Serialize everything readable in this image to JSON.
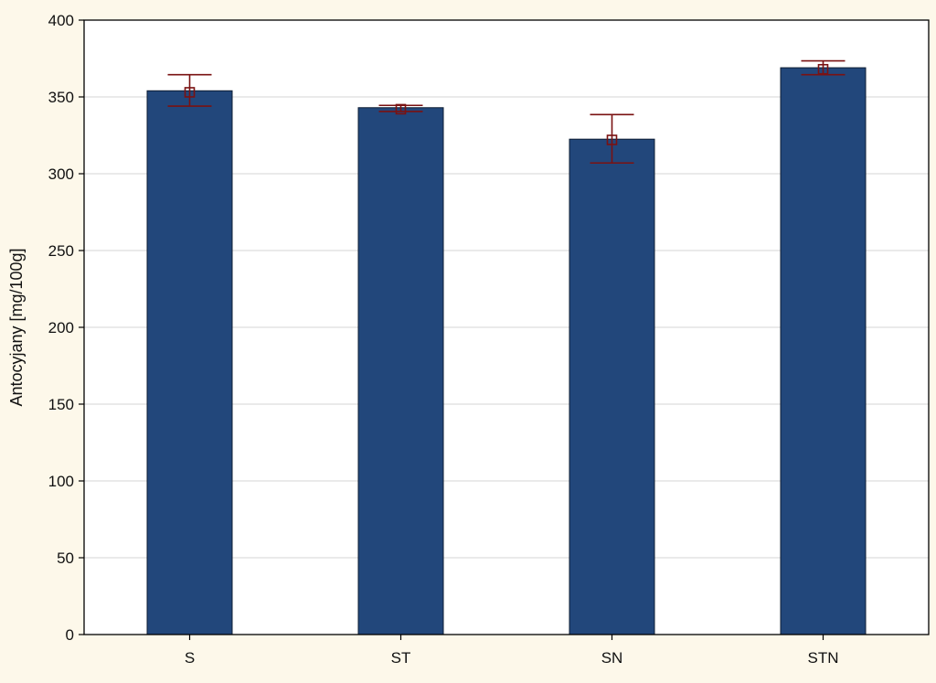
{
  "colors": {
    "background": "#fdf8ea",
    "plot_background": "#ffffff",
    "bar_fill": "#22477b",
    "bar_stroke": "#0e1d33",
    "error_bar": "#7a1212",
    "grid": "#d4d4d4",
    "axis": "#000000"
  },
  "chart_data": {
    "type": "bar",
    "categories": [
      "S",
      "ST",
      "SN",
      "STN"
    ],
    "values": [
      354,
      343,
      322.5,
      369
    ],
    "means": [
      353,
      342,
      322,
      368
    ],
    "error_low": [
      344,
      340.5,
      307,
      364.5
    ],
    "error_high": [
      364.5,
      344.5,
      338.5,
      373.5
    ],
    "title": "",
    "xlabel": "",
    "ylabel": "Antocyjany [mg/100g]",
    "ylim": [
      0,
      400
    ],
    "yticks": [
      "0",
      "50",
      "100",
      "150",
      "200",
      "250",
      "300",
      "350",
      "400"
    ],
    "grid": true,
    "legend": "none"
  }
}
